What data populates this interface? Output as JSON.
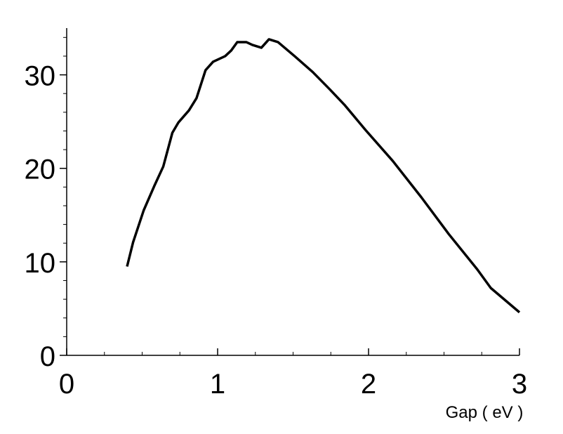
{
  "chart_data": {
    "type": "line",
    "x_label": "Gap ( eV )",
    "x": [
      0.4,
      0.44,
      0.51,
      0.58,
      0.64,
      0.7,
      0.74,
      0.81,
      0.86,
      0.92,
      0.97,
      1.05,
      1.09,
      1.13,
      1.19,
      1.23,
      1.29,
      1.34,
      1.4,
      1.51,
      1.63,
      1.74,
      1.84,
      1.98,
      2.16,
      2.35,
      2.53,
      2.72,
      2.81,
      3.0
    ],
    "series": [
      {
        "color": "#000000",
        "values": [
          9.5,
          12.1,
          15.5,
          18.1,
          20.2,
          23.8,
          24.9,
          26.2,
          27.5,
          30.5,
          31.4,
          32.0,
          32.6,
          33.5,
          33.5,
          33.2,
          32.9,
          33.8,
          33.5,
          32.0,
          30.3,
          28.5,
          26.8,
          24.1,
          20.8,
          16.9,
          13.0,
          9.2,
          7.2,
          4.6
        ]
      }
    ],
    "xlim": [
      0,
      3
    ],
    "xticks": [
      0,
      1,
      2,
      3
    ],
    "ylim": [
      0,
      35
    ],
    "yticks": [
      0,
      10,
      20,
      30
    ]
  }
}
